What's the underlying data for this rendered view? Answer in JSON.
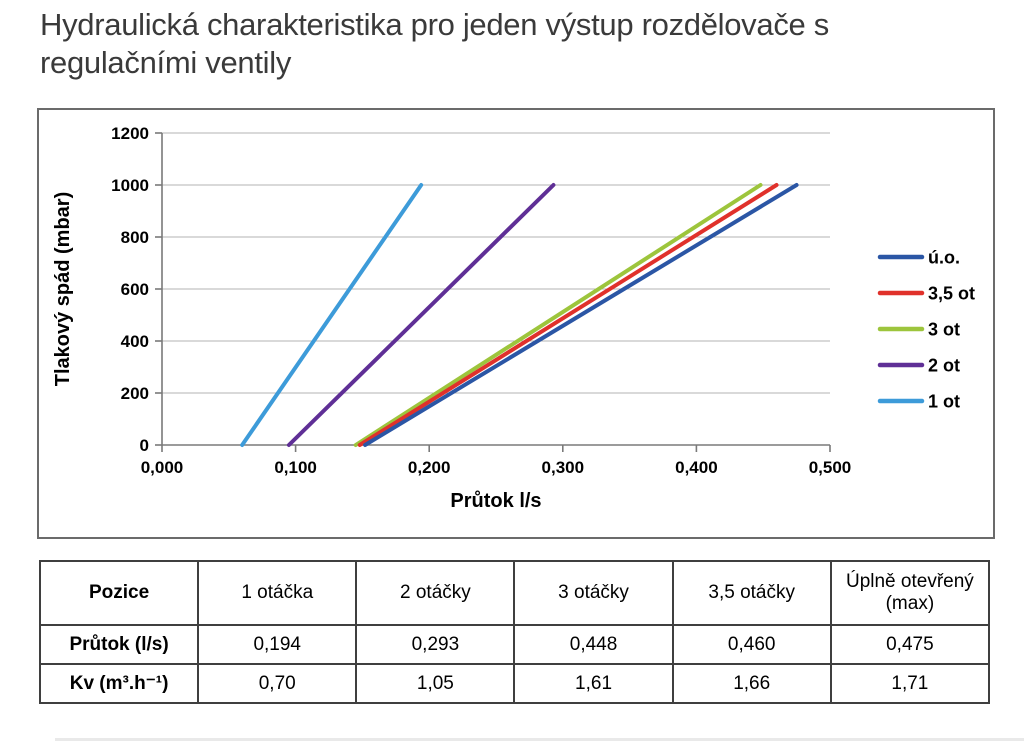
{
  "page": {
    "title": "Hydraulická charakteristika pro jeden výstup rozdělovače s regulačními ventily"
  },
  "chart_data": {
    "type": "line",
    "title": "",
    "xlabel": "Průtok l/s",
    "ylabel": "Tlakový spád (mbar)",
    "xlim": [
      0,
      0.5
    ],
    "ylim": [
      0,
      1200
    ],
    "grid": "horizontal-only",
    "legend_position": "right-inside",
    "x_ticks": [
      {
        "v": 0.0,
        "label": "0,000"
      },
      {
        "v": 0.1,
        "label": "0,100"
      },
      {
        "v": 0.2,
        "label": "0,200"
      },
      {
        "v": 0.3,
        "label": "0,300"
      },
      {
        "v": 0.4,
        "label": "0,400"
      },
      {
        "v": 0.5,
        "label": "0,500"
      }
    ],
    "y_ticks": [
      {
        "v": 0,
        "label": "0"
      },
      {
        "v": 200,
        "label": "200"
      },
      {
        "v": 400,
        "label": "400"
      },
      {
        "v": 600,
        "label": "600"
      },
      {
        "v": 800,
        "label": "800"
      },
      {
        "v": 1000,
        "label": "1000"
      },
      {
        "v": 1200,
        "label": "1200"
      }
    ],
    "series": [
      {
        "name": "ú.o.",
        "color": "#2B56A5",
        "points": [
          [
            0.152,
            0
          ],
          [
            0.475,
            1000
          ]
        ]
      },
      {
        "name": "3,5 ot",
        "color": "#E0312B",
        "points": [
          [
            0.148,
            0
          ],
          [
            0.46,
            1000
          ]
        ]
      },
      {
        "name": "3 ot",
        "color": "#9DC53C",
        "points": [
          [
            0.145,
            0
          ],
          [
            0.448,
            1000
          ]
        ]
      },
      {
        "name": "2 ot",
        "color": "#5F2F96",
        "points": [
          [
            0.095,
            0
          ],
          [
            0.293,
            1000
          ]
        ]
      },
      {
        "name": "1 ot",
        "color": "#3D9BD9",
        "points": [
          [
            0.06,
            0
          ],
          [
            0.194,
            1000
          ]
        ]
      }
    ]
  },
  "table": {
    "header": [
      "Pozice",
      "1 otáčka",
      "2 otáčky",
      "3 otáčky",
      "3,5 otáčky",
      "Úplně otevřený (max)"
    ],
    "rows": [
      {
        "label": "Průtok (l/s)",
        "values": [
          "0,194",
          "0,293",
          "0,448",
          "0,460",
          "0,475"
        ]
      },
      {
        "label": "Kv (m³.h⁻¹)",
        "values": [
          "0,70",
          "1,05",
          "1,61",
          "1,66",
          "1,71"
        ]
      }
    ]
  }
}
